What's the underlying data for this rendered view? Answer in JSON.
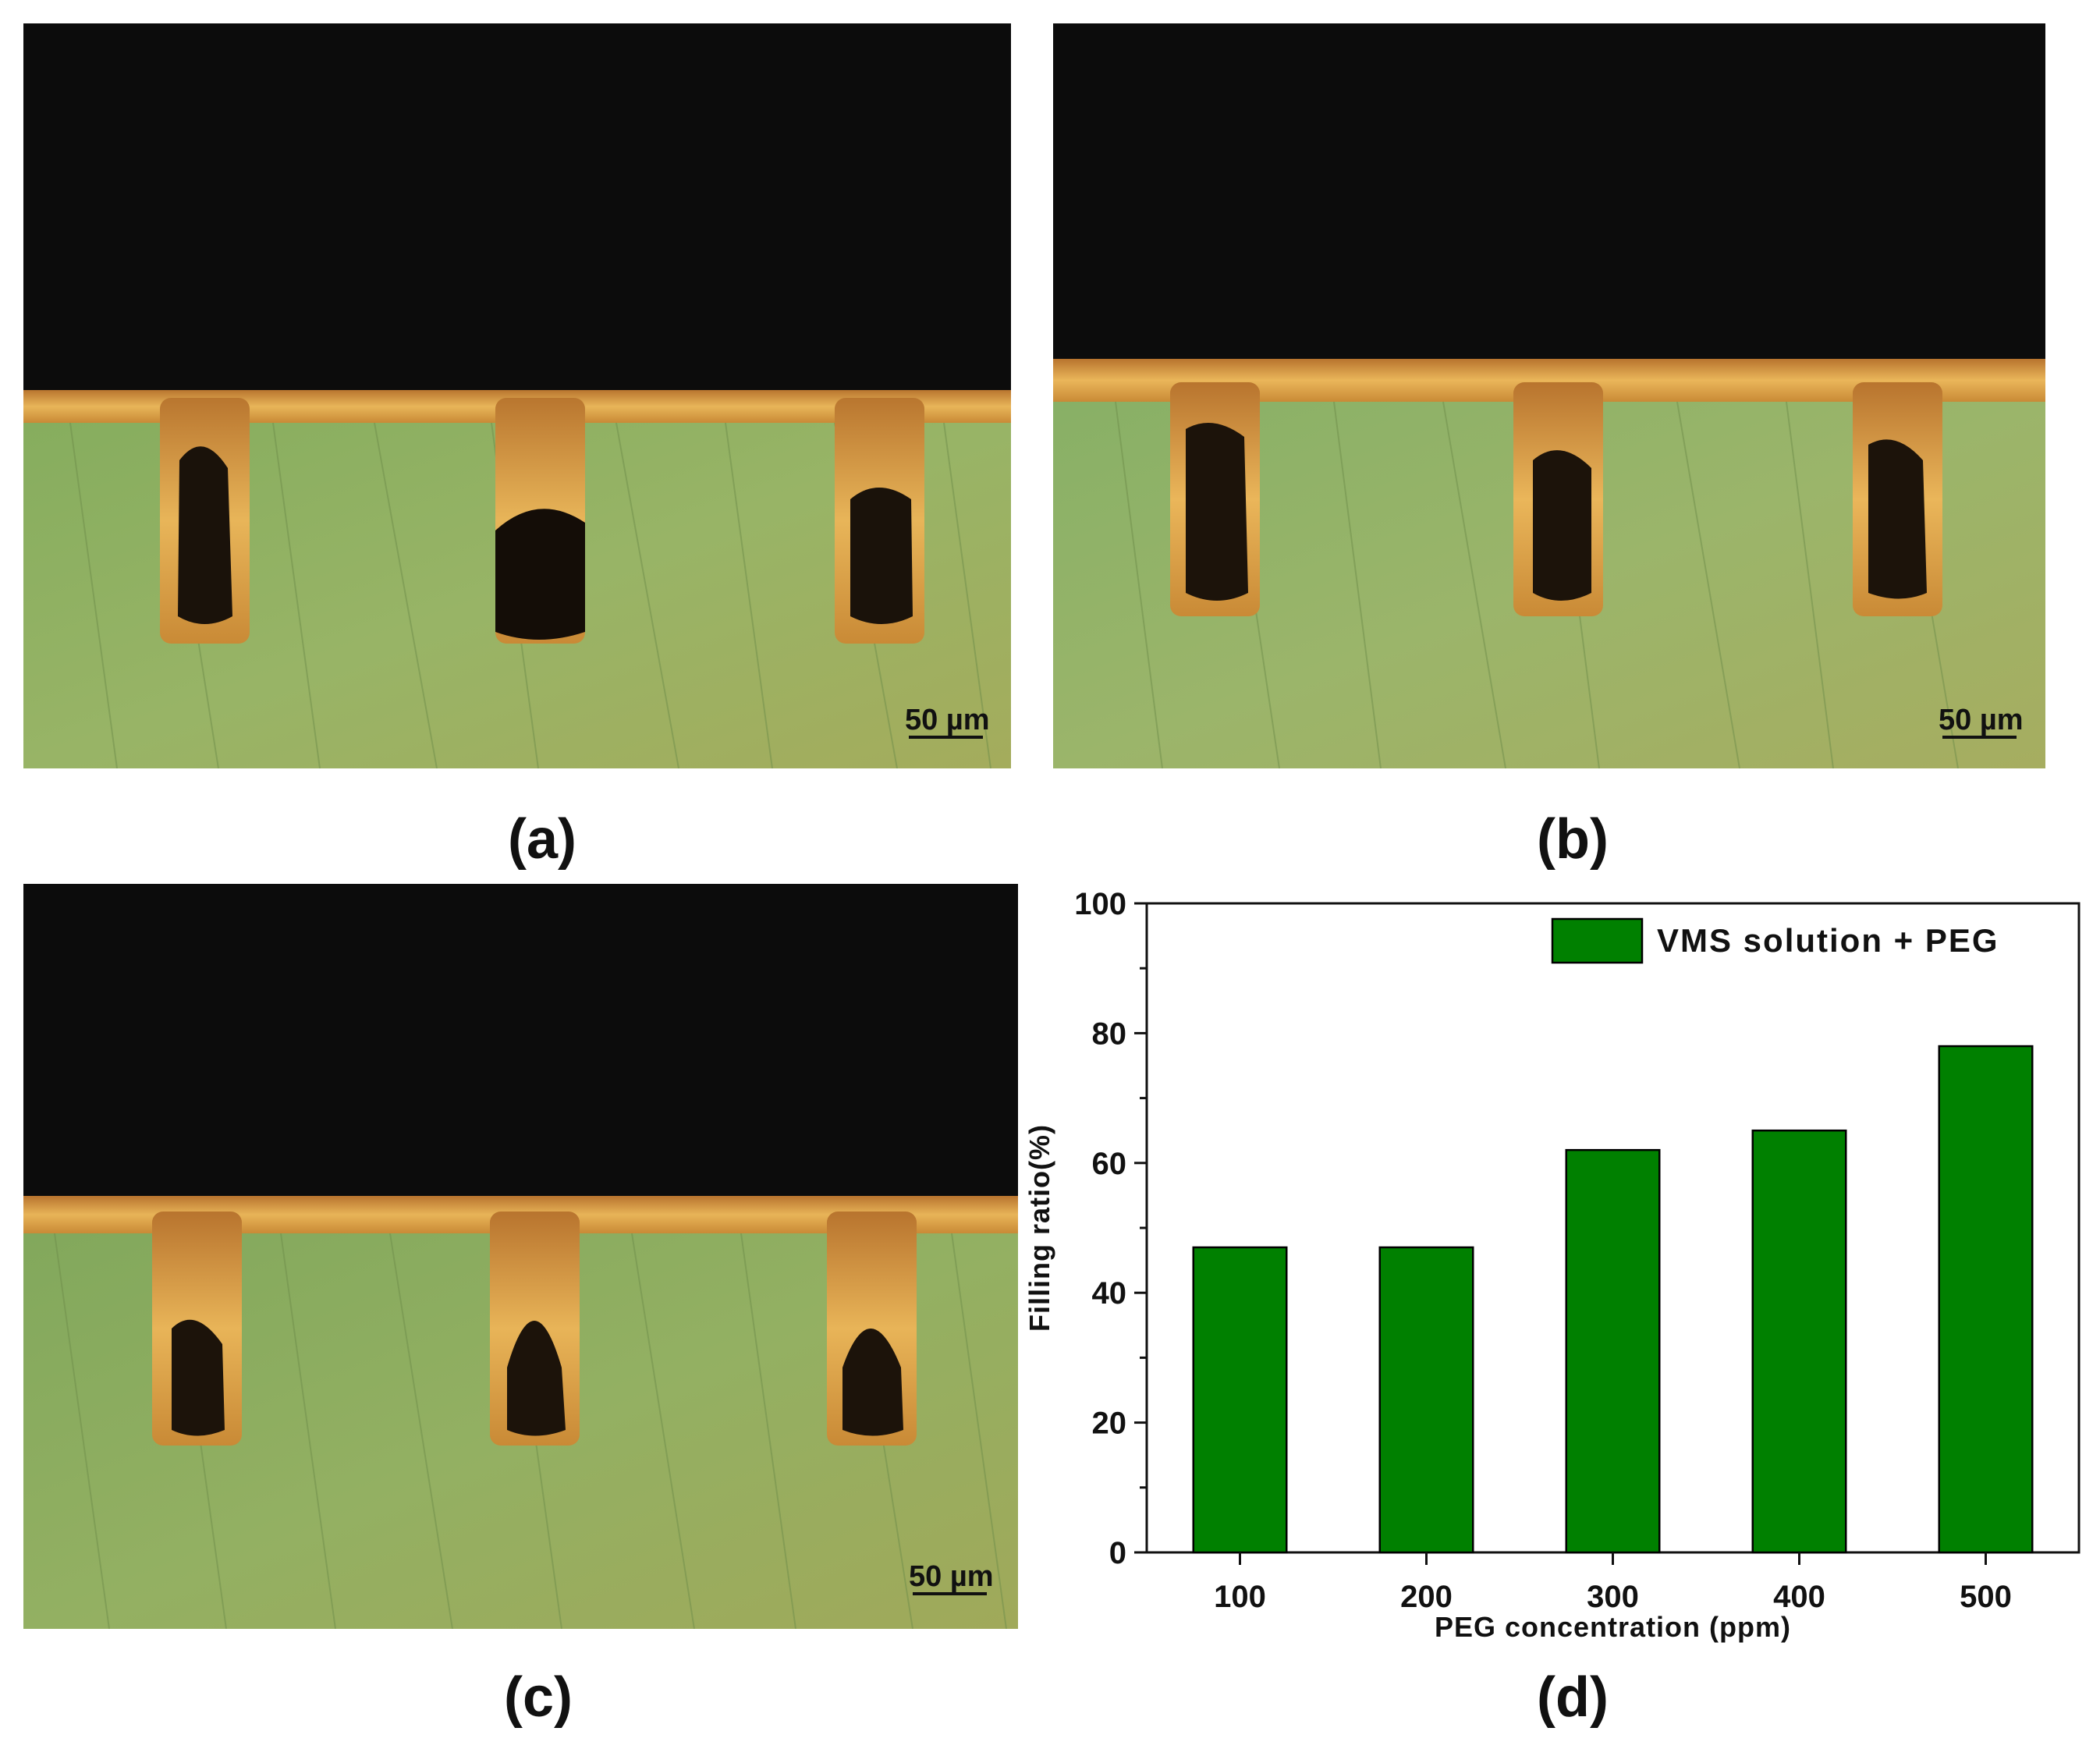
{
  "panels": [
    {
      "id": "a",
      "label": "(a)",
      "scale_bar": "50 µm",
      "fill_fraction": 0.0
    },
    {
      "id": "b",
      "label": "(b)",
      "scale_bar": "50 µm"
    },
    {
      "id": "c",
      "label": "(c)",
      "scale_bar": "50 µm"
    },
    {
      "id": "d",
      "label": "(d)"
    }
  ],
  "colors": {
    "background_dark": "#0c0c0c",
    "substrate_green": "#8fae62",
    "copper": "#d9a24a",
    "bar_fill": "#008000",
    "bar_stroke": "#000000"
  },
  "chart_data": {
    "type": "bar",
    "categories": [
      "100",
      "200",
      "300",
      "400",
      "500"
    ],
    "series": [
      {
        "name": "VMS solution + PEG",
        "values": [
          47,
          47,
          62,
          65,
          78
        ]
      }
    ],
    "xlabel": "PEG concentration (ppm)",
    "ylabel": "Filling ratio(%)",
    "ylim": [
      0,
      100
    ],
    "yticks": [
      0,
      20,
      40,
      60,
      80,
      100
    ],
    "grid": false,
    "legend_position": "top-right"
  }
}
